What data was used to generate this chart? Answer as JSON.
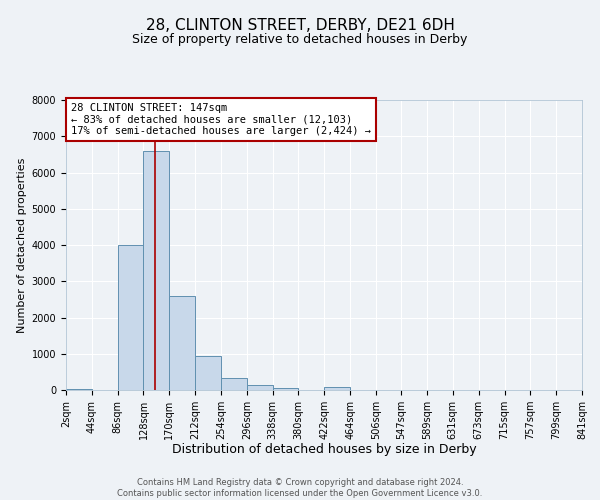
{
  "title": "28, CLINTON STREET, DERBY, DE21 6DH",
  "subtitle": "Size of property relative to detached houses in Derby",
  "xlabel": "Distribution of detached houses by size in Derby",
  "ylabel": "Number of detached properties",
  "footer_line1": "Contains HM Land Registry data © Crown copyright and database right 2024.",
  "footer_line2": "Contains public sector information licensed under the Open Government Licence v3.0.",
  "annotation_title": "28 CLINTON STREET: 147sqm",
  "annotation_line1": "← 83% of detached houses are smaller (12,103)",
  "annotation_line2": "17% of semi-detached houses are larger (2,424) →",
  "bin_edges": [
    2,
    44,
    86,
    128,
    170,
    212,
    254,
    296,
    338,
    380,
    422,
    464,
    506,
    547,
    589,
    631,
    673,
    715,
    757,
    799,
    841
  ],
  "bin_counts": [
    30,
    0,
    4000,
    6600,
    2600,
    950,
    330,
    150,
    50,
    0,
    90,
    0,
    0,
    0,
    0,
    0,
    0,
    0,
    0,
    0
  ],
  "bar_color": "#c8d8ea",
  "bar_edge_color": "#6090b0",
  "red_line_x": 147,
  "ylim": [
    0,
    8000
  ],
  "yticks": [
    0,
    1000,
    2000,
    3000,
    4000,
    5000,
    6000,
    7000,
    8000
  ],
  "bg_color": "#eef2f6",
  "plot_bg_color": "#eef2f6",
  "grid_color": "#ffffff",
  "annotation_box_color": "#aa0000",
  "title_fontsize": 11,
  "subtitle_fontsize": 9,
  "xlabel_fontsize": 9,
  "ylabel_fontsize": 8,
  "tick_fontsize": 7,
  "footer_fontsize": 6
}
